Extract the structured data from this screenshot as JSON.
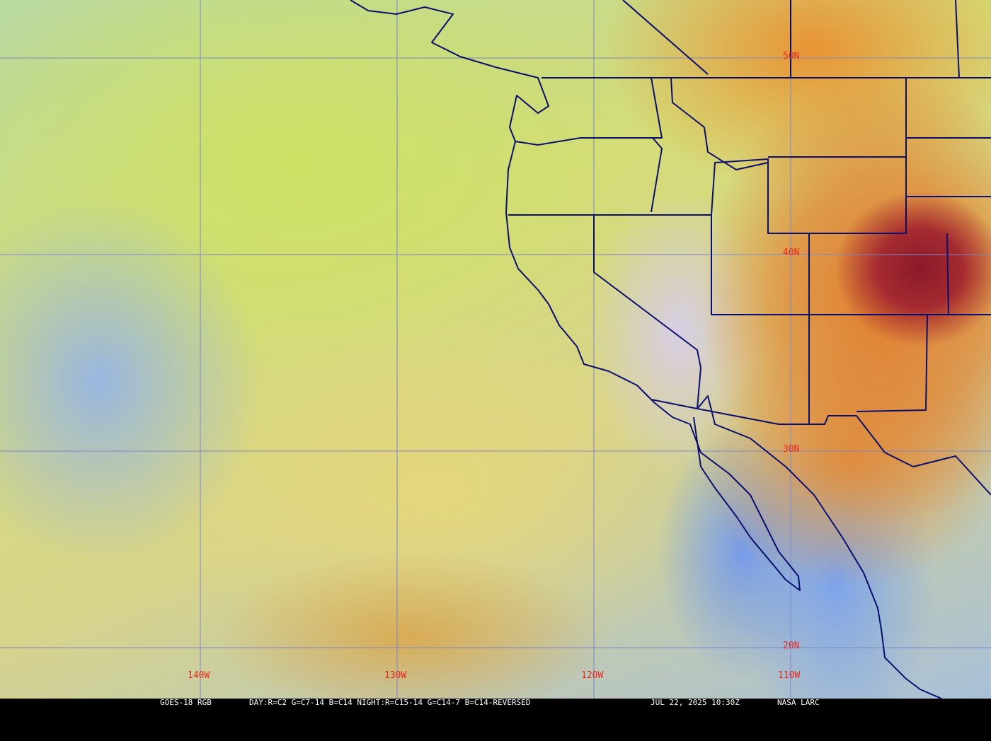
{
  "map": {
    "type": "satellite RGB composite",
    "grid": {
      "latitudes": [
        {
          "label": "50N"
        },
        {
          "label": "40N"
        },
        {
          "label": "30N"
        },
        {
          "label": "20N"
        }
      ],
      "longitudes": [
        {
          "label": "140W"
        },
        {
          "label": "130W"
        },
        {
          "label": "120W"
        },
        {
          "label": "110W"
        }
      ],
      "line_color": "#7f86c8",
      "label_color": "#e8281e"
    },
    "border_color": "#0a0f6e"
  },
  "caption": {
    "satellite": "GOES-18 RGB",
    "recipe": "DAY:R=C2 G=C7-14 B=C14 NIGHT:R=C15-14 G=C14-7 B=C14-REVERSED",
    "timestamp": "JUL 22, 2025 10:30Z",
    "credit": "NASA LARC"
  }
}
